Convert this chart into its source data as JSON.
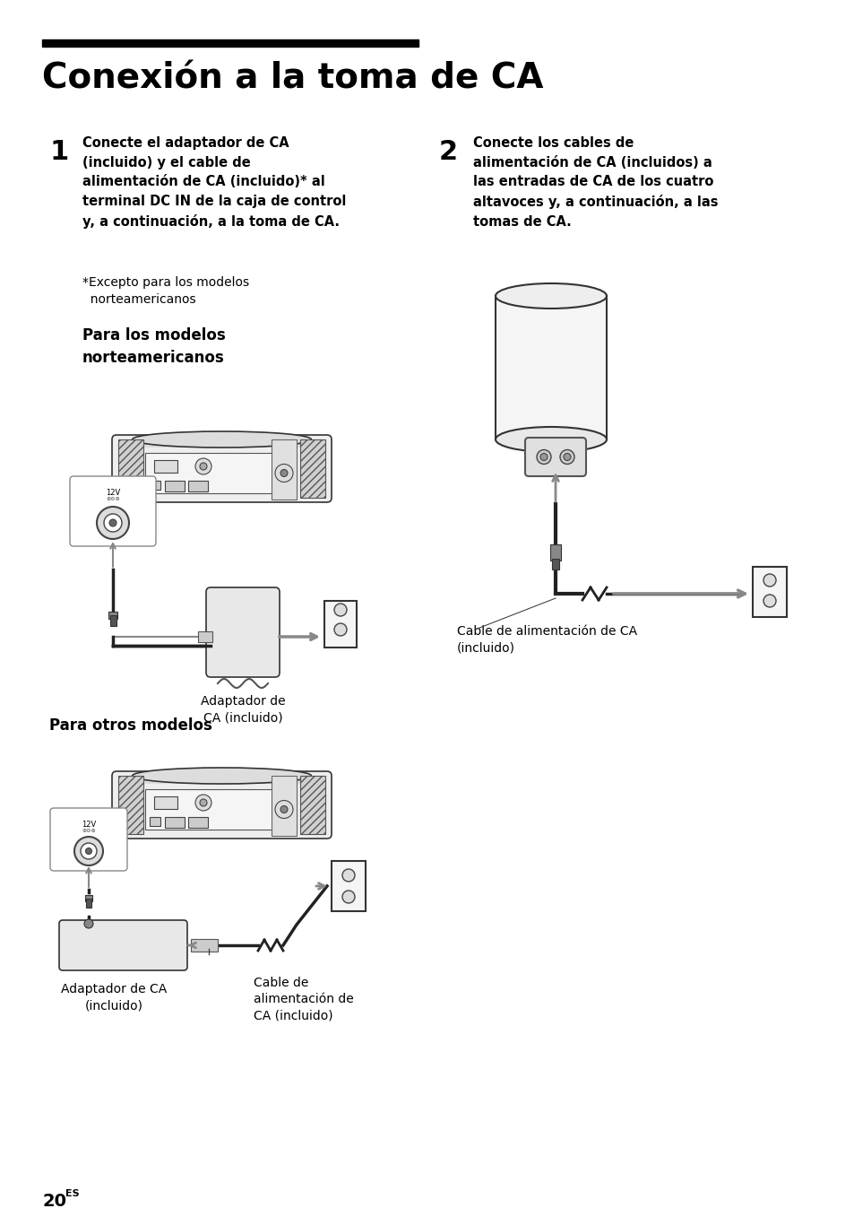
{
  "page_bg": "#ffffff",
  "title": "Conexión a la toma de CA",
  "title_bar_color": "#000000",
  "step1_num": "1",
  "step1_text": "Conecte el adaptador de CA\n(incluido) y el cable de\nalimentación de CA (incluido)* al\nterminal DC IN de la caja de control\ny, a continuación, a la toma de CA.",
  "step1_note": "*Excepto para los modelos\n  norteamericanos",
  "subhead1": "Para los modelos\nnorteamericanos",
  "adapter_label1": "Adaptador de\nCA (incluido)",
  "subhead2": "Para otros modelos",
  "adapter_label2": "Adaptador de CA\n(incluido)",
  "cable_label2": "Cable de\nalimentación de\nCA (incluido)",
  "step2_num": "2",
  "step2_text": "Conecte los cables de\nalimentación de CA (incluidos) a\nlas entradas de CA de los cuatro\naltavoces y, a continuación, a las\ntomas de CA.",
  "cable_label_right": "Cable de alimentación de CA\n(incluido)",
  "page_num": "20",
  "page_suffix": "ES",
  "text_color": "#000000",
  "dark_gray": "#444444",
  "mid_gray": "#888888",
  "light_gray": "#cccccc",
  "box_fill": "#e8e8e8",
  "white": "#ffffff"
}
